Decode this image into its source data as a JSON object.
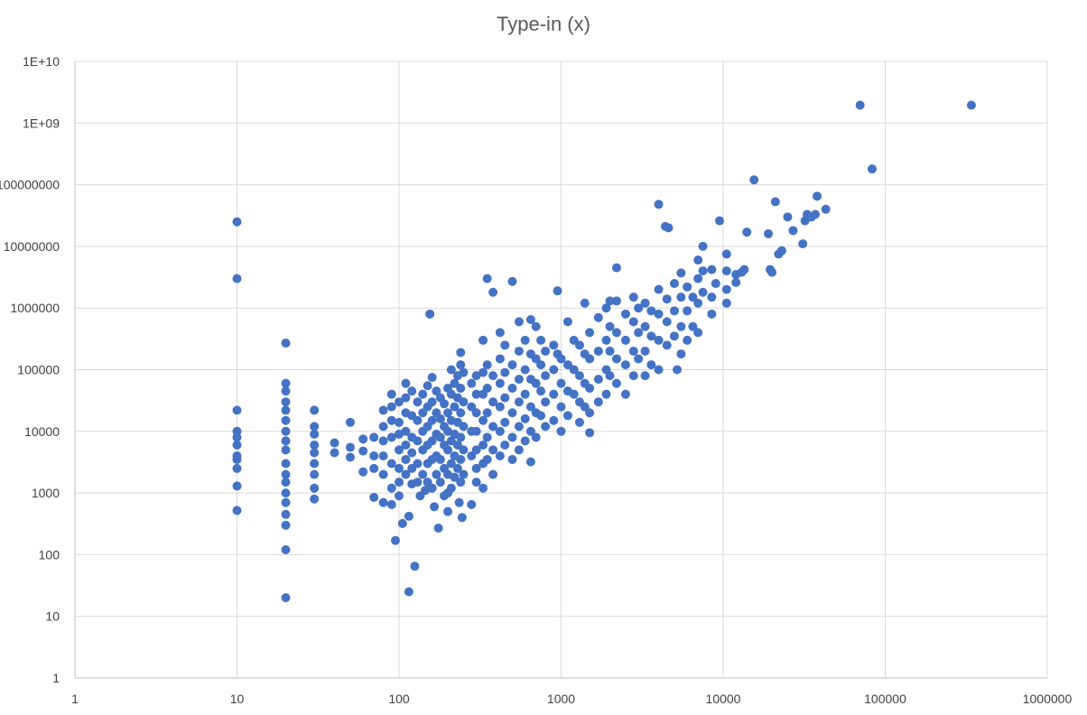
{
  "chart_data": {
    "type": "scatter",
    "title": "Type-in (x)",
    "xscale": "log",
    "yscale": "log",
    "xlim": [
      1,
      1000000
    ],
    "ylim": [
      1,
      10000000000
    ],
    "x_ticks": [
      "1",
      "10",
      "100",
      "1000",
      "10000",
      "100000",
      "1000000"
    ],
    "y_ticks": [
      "1",
      "10",
      "100",
      "1000",
      "10000",
      "100000",
      "1000000",
      "10000000",
      "100000000",
      "1E+09",
      "1E+10"
    ],
    "grid": true,
    "legend": "none",
    "marker_color": "#4472C4",
    "points": [
      [
        10,
        25000000
      ],
      [
        10,
        3000000
      ],
      [
        10,
        22000
      ],
      [
        10,
        10000
      ],
      [
        10,
        8000
      ],
      [
        10,
        6000
      ],
      [
        10,
        4000
      ],
      [
        10,
        3500
      ],
      [
        10,
        2500
      ],
      [
        10,
        1300
      ],
      [
        10,
        520
      ],
      [
        20,
        270000
      ],
      [
        20,
        60000
      ],
      [
        20,
        45000
      ],
      [
        20,
        30000
      ],
      [
        20,
        22000
      ],
      [
        20,
        15000
      ],
      [
        20,
        10000
      ],
      [
        20,
        7000
      ],
      [
        20,
        5000
      ],
      [
        20,
        3000
      ],
      [
        20,
        2000
      ],
      [
        20,
        1500
      ],
      [
        20,
        1000
      ],
      [
        20,
        700
      ],
      [
        20,
        450
      ],
      [
        20,
        300
      ],
      [
        20,
        120
      ],
      [
        20,
        20
      ],
      [
        30,
        22000
      ],
      [
        30,
        12000
      ],
      [
        30,
        9000
      ],
      [
        30,
        6000
      ],
      [
        30,
        4500
      ],
      [
        30,
        3000
      ],
      [
        30,
        2000
      ],
      [
        30,
        1200
      ],
      [
        30,
        800
      ],
      [
        40,
        6500
      ],
      [
        40,
        4500
      ],
      [
        50,
        14000
      ],
      [
        50,
        5500
      ],
      [
        50,
        3800
      ],
      [
        60,
        7500
      ],
      [
        60,
        4800
      ],
      [
        60,
        2200
      ],
      [
        70,
        8000
      ],
      [
        70,
        4000
      ],
      [
        70,
        2500
      ],
      [
        70,
        850
      ],
      [
        80,
        22000
      ],
      [
        80,
        12000
      ],
      [
        80,
        7000
      ],
      [
        80,
        4000
      ],
      [
        80,
        2000
      ],
      [
        80,
        700
      ],
      [
        90,
        40000
      ],
      [
        90,
        25000
      ],
      [
        90,
        15000
      ],
      [
        90,
        8000
      ],
      [
        90,
        3000
      ],
      [
        90,
        1200
      ],
      [
        90,
        650
      ],
      [
        95,
        170
      ],
      [
        100,
        30000
      ],
      [
        100,
        14000
      ],
      [
        100,
        9000
      ],
      [
        100,
        5000
      ],
      [
        100,
        2500
      ],
      [
        100,
        1500
      ],
      [
        100,
        900
      ],
      [
        105,
        320
      ],
      [
        110,
        60000
      ],
      [
        110,
        35000
      ],
      [
        110,
        20000
      ],
      [
        110,
        10000
      ],
      [
        110,
        6000
      ],
      [
        110,
        3500
      ],
      [
        110,
        2000
      ],
      [
        115,
        25
      ],
      [
        115,
        420
      ],
      [
        120,
        45000
      ],
      [
        120,
        18000
      ],
      [
        120,
        8000
      ],
      [
        120,
        4500
      ],
      [
        120,
        2500
      ],
      [
        120,
        1400
      ],
      [
        125,
        65
      ],
      [
        130,
        30000
      ],
      [
        130,
        15000
      ],
      [
        130,
        7000
      ],
      [
        130,
        3000
      ],
      [
        130,
        1500
      ],
      [
        135,
        900
      ],
      [
        140,
        40000
      ],
      [
        140,
        20000
      ],
      [
        140,
        10000
      ],
      [
        140,
        5000
      ],
      [
        140,
        2000
      ],
      [
        145,
        1100
      ],
      [
        150,
        55000
      ],
      [
        150,
        25000
      ],
      [
        150,
        12000
      ],
      [
        150,
        6000
      ],
      [
        150,
        3000
      ],
      [
        150,
        1500
      ],
      [
        155,
        800000
      ],
      [
        160,
        75000
      ],
      [
        160,
        30000
      ],
      [
        160,
        15000
      ],
      [
        160,
        7000
      ],
      [
        160,
        3500
      ],
      [
        160,
        1200
      ],
      [
        165,
        600
      ],
      [
        170,
        45000
      ],
      [
        170,
        20000
      ],
      [
        170,
        9000
      ],
      [
        170,
        4000
      ],
      [
        170,
        2000
      ],
      [
        175,
        270
      ],
      [
        180,
        35000
      ],
      [
        180,
        16000
      ],
      [
        180,
        8000
      ],
      [
        180,
        3500
      ],
      [
        180,
        1500
      ],
      [
        190,
        28000
      ],
      [
        190,
        12000
      ],
      [
        190,
        6000
      ],
      [
        190,
        2500
      ],
      [
        190,
        900
      ],
      [
        200,
        50000
      ],
      [
        200,
        20000
      ],
      [
        200,
        10000
      ],
      [
        200,
        5000
      ],
      [
        200,
        2000
      ],
      [
        200,
        1000
      ],
      [
        200,
        500
      ],
      [
        210,
        100000
      ],
      [
        210,
        40000
      ],
      [
        210,
        15000
      ],
      [
        210,
        7000
      ],
      [
        210,
        3000
      ],
      [
        210,
        1200
      ],
      [
        220,
        60000
      ],
      [
        220,
        25000
      ],
      [
        220,
        9000
      ],
      [
        220,
        4000
      ],
      [
        220,
        1800
      ],
      [
        230,
        80000
      ],
      [
        230,
        35000
      ],
      [
        230,
        14000
      ],
      [
        230,
        6000
      ],
      [
        230,
        2500
      ],
      [
        235,
        700
      ],
      [
        240,
        190000
      ],
      [
        240,
        120000
      ],
      [
        240,
        50000
      ],
      [
        240,
        20000
      ],
      [
        240,
        8000
      ],
      [
        240,
        3500
      ],
      [
        240,
        1500
      ],
      [
        245,
        400
      ],
      [
        250,
        90000
      ],
      [
        250,
        30000
      ],
      [
        250,
        12000
      ],
      [
        250,
        5000
      ],
      [
        250,
        2000
      ],
      [
        280,
        60000
      ],
      [
        280,
        25000
      ],
      [
        280,
        10000
      ],
      [
        280,
        4000
      ],
      [
        280,
        650
      ],
      [
        300,
        80000
      ],
      [
        300,
        40000
      ],
      [
        300,
        20000
      ],
      [
        300,
        10000
      ],
      [
        300,
        5000
      ],
      [
        300,
        2500
      ],
      [
        300,
        1500
      ],
      [
        330,
        300000
      ],
      [
        330,
        90000
      ],
      [
        330,
        40000
      ],
      [
        330,
        15000
      ],
      [
        330,
        6000
      ],
      [
        330,
        3000
      ],
      [
        330,
        1200
      ],
      [
        350,
        3000000
      ],
      [
        350,
        120000
      ],
      [
        350,
        50000
      ],
      [
        350,
        20000
      ],
      [
        350,
        8000
      ],
      [
        350,
        3500
      ],
      [
        380,
        1800000
      ],
      [
        380,
        80000
      ],
      [
        380,
        30000
      ],
      [
        380,
        12000
      ],
      [
        380,
        5000
      ],
      [
        380,
        2000
      ],
      [
        420,
        400000
      ],
      [
        420,
        150000
      ],
      [
        420,
        60000
      ],
      [
        420,
        25000
      ],
      [
        420,
        10000
      ],
      [
        420,
        4000
      ],
      [
        450,
        250000
      ],
      [
        450,
        90000
      ],
      [
        450,
        35000
      ],
      [
        450,
        14000
      ],
      [
        450,
        6000
      ],
      [
        500,
        2700000
      ],
      [
        500,
        120000
      ],
      [
        500,
        50000
      ],
      [
        500,
        20000
      ],
      [
        500,
        8000
      ],
      [
        500,
        3500
      ],
      [
        550,
        600000
      ],
      [
        550,
        200000
      ],
      [
        550,
        70000
      ],
      [
        550,
        30000
      ],
      [
        550,
        12000
      ],
      [
        550,
        5000
      ],
      [
        600,
        300000
      ],
      [
        600,
        100000
      ],
      [
        600,
        40000
      ],
      [
        600,
        16000
      ],
      [
        600,
        7000
      ],
      [
        650,
        650000
      ],
      [
        650,
        180000
      ],
      [
        650,
        70000
      ],
      [
        650,
        25000
      ],
      [
        650,
        10000
      ],
      [
        650,
        3200
      ],
      [
        700,
        500000
      ],
      [
        700,
        150000
      ],
      [
        700,
        60000
      ],
      [
        700,
        20000
      ],
      [
        700,
        8000
      ],
      [
        750,
        300000
      ],
      [
        750,
        120000
      ],
      [
        750,
        45000
      ],
      [
        750,
        18000
      ],
      [
        800,
        200000
      ],
      [
        800,
        80000
      ],
      [
        800,
        30000
      ],
      [
        800,
        12000
      ],
      [
        900,
        250000
      ],
      [
        900,
        100000
      ],
      [
        900,
        40000
      ],
      [
        900,
        15000
      ],
      [
        950,
        1900000
      ],
      [
        950,
        180000
      ],
      [
        1000,
        150000
      ],
      [
        1000,
        60000
      ],
      [
        1000,
        25000
      ],
      [
        1000,
        10000
      ],
      [
        1100,
        600000
      ],
      [
        1100,
        120000
      ],
      [
        1100,
        45000
      ],
      [
        1100,
        18000
      ],
      [
        1200,
        300000
      ],
      [
        1200,
        100000
      ],
      [
        1200,
        40000
      ],
      [
        1300,
        250000
      ],
      [
        1300,
        80000
      ],
      [
        1300,
        30000
      ],
      [
        1300,
        14000
      ],
      [
        1400,
        1200000
      ],
      [
        1400,
        180000
      ],
      [
        1400,
        60000
      ],
      [
        1400,
        25000
      ],
      [
        1500,
        400000
      ],
      [
        1500,
        150000
      ],
      [
        1500,
        50000
      ],
      [
        1500,
        20000
      ],
      [
        1500,
        9500
      ],
      [
        1700,
        700000
      ],
      [
        1700,
        200000
      ],
      [
        1700,
        70000
      ],
      [
        1700,
        30000
      ],
      [
        1900,
        1000000
      ],
      [
        1900,
        300000
      ],
      [
        1900,
        100000
      ],
      [
        1900,
        40000
      ],
      [
        2000,
        1300000
      ],
      [
        2000,
        500000
      ],
      [
        2000,
        200000
      ],
      [
        2000,
        80000
      ],
      [
        2200,
        4500000
      ],
      [
        2200,
        1300000
      ],
      [
        2200,
        400000
      ],
      [
        2200,
        150000
      ],
      [
        2200,
        60000
      ],
      [
        2500,
        800000
      ],
      [
        2500,
        300000
      ],
      [
        2500,
        120000
      ],
      [
        2500,
        40000
      ],
      [
        2800,
        1500000
      ],
      [
        2800,
        600000
      ],
      [
        2800,
        200000
      ],
      [
        2800,
        80000
      ],
      [
        3000,
        1000000
      ],
      [
        3000,
        400000
      ],
      [
        3000,
        150000
      ],
      [
        3300,
        1200000
      ],
      [
        3300,
        500000
      ],
      [
        3300,
        200000
      ],
      [
        3300,
        80000
      ],
      [
        3600,
        900000
      ],
      [
        3600,
        350000
      ],
      [
        3600,
        120000
      ],
      [
        4000,
        48000000
      ],
      [
        4000,
        2000000
      ],
      [
        4000,
        800000
      ],
      [
        4000,
        300000
      ],
      [
        4000,
        100000
      ],
      [
        4400,
        21000000
      ],
      [
        4600,
        20000000
      ],
      [
        4500,
        1400000
      ],
      [
        4500,
        600000
      ],
      [
        4500,
        250000
      ],
      [
        5000,
        2500000
      ],
      [
        5000,
        900000
      ],
      [
        5000,
        350000
      ],
      [
        5200,
        100000
      ],
      [
        5500,
        3700000
      ],
      [
        5500,
        1500000
      ],
      [
        5500,
        500000
      ],
      [
        5500,
        180000
      ],
      [
        6000,
        2200000
      ],
      [
        6000,
        900000
      ],
      [
        6000,
        300000
      ],
      [
        6500,
        1500000
      ],
      [
        6500,
        500000
      ],
      [
        7000,
        6000000
      ],
      [
        7000,
        3000000
      ],
      [
        7000,
        1200000
      ],
      [
        7000,
        400000
      ],
      [
        7500,
        10000000
      ],
      [
        7500,
        4000000
      ],
      [
        7500,
        1800000
      ],
      [
        8500,
        4200000
      ],
      [
        8500,
        1500000
      ],
      [
        8500,
        800000
      ],
      [
        9000,
        2500000
      ],
      [
        9500,
        26000000
      ],
      [
        10500,
        7500000
      ],
      [
        10500,
        4000000
      ],
      [
        10500,
        2000000
      ],
      [
        10500,
        1200000
      ],
      [
        12000,
        3500000
      ],
      [
        12000,
        2600000
      ],
      [
        13000,
        3800000
      ],
      [
        13500,
        4200000
      ],
      [
        14000,
        17000000
      ],
      [
        15500,
        120000000
      ],
      [
        19000,
        16000000
      ],
      [
        19500,
        4200000
      ],
      [
        20000,
        3800000
      ],
      [
        21000,
        53000000
      ],
      [
        22000,
        7500000
      ],
      [
        23000,
        8500000
      ],
      [
        25000,
        30000000
      ],
      [
        27000,
        18000000
      ],
      [
        31000,
        11000000
      ],
      [
        32000,
        26000000
      ],
      [
        33000,
        33000000
      ],
      [
        35000,
        30000000
      ],
      [
        37000,
        33000000
      ],
      [
        38000,
        65000000
      ],
      [
        43000,
        40000000
      ],
      [
        70000,
        1950000000
      ],
      [
        83000,
        180000000
      ],
      [
        340000,
        1950000000
      ]
    ]
  }
}
